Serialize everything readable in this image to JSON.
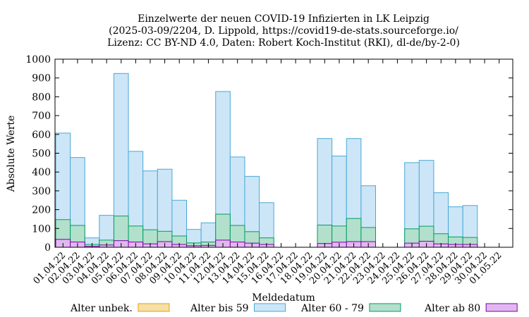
{
  "chart_data": {
    "type": "bar",
    "stacked": "overlay",
    "title": [
      "Einzelwerte der neuen COVID-19 Infizierten in LK Leipzig",
      "(2025-03-09/2204, D. Lippold, https://covid19-de-stats.sourceforge.io/",
      "Lizenz: CC BY-ND 4.0, Daten: Robert Koch-Institut (RKI), dl-de/by-2-0)"
    ],
    "xlabel": "Meldedatum",
    "ylabel": "Absolute Werte",
    "ylim": [
      0,
      1000
    ],
    "yticks": [
      0,
      100,
      200,
      300,
      400,
      500,
      600,
      700,
      800,
      900,
      1000
    ],
    "grid": false,
    "legend_position": "bottom",
    "categories": [
      "01.04.22",
      "02.04.22",
      "03.04.22",
      "04.04.22",
      "05.04.22",
      "06.04.22",
      "07.04.22",
      "08.04.22",
      "09.04.22",
      "10.04.22",
      "11.04.22",
      "12.04.22",
      "13.04.22",
      "14.04.22",
      "15.04.22",
      "16.04.22",
      "17.04.22",
      "18.04.22",
      "19.04.22",
      "20.04.22",
      "21.04.22",
      "22.04.22",
      "23.04.22",
      "24.04.22",
      "25.04.22",
      "26.04.22",
      "27.04.22",
      "28.04.22",
      "29.04.22",
      "30.04.22",
      "01.05.22"
    ],
    "series": [
      {
        "name": "Alter unbek.",
        "color": "#f5e0a8",
        "edge": "#e8a000",
        "values": [
          0,
          0,
          0,
          0,
          0,
          0,
          0,
          0,
          0,
          0,
          0,
          0,
          0,
          0,
          0,
          null,
          null,
          null,
          0,
          0,
          0,
          0,
          null,
          null,
          0,
          0,
          0,
          0,
          0,
          null,
          null
        ]
      },
      {
        "name": "Alter bis 59",
        "color": "#cce6f7",
        "edge": "#4aa8d8",
        "values": [
          607,
          477,
          50,
          170,
          924,
          510,
          406,
          415,
          250,
          95,
          130,
          828,
          480,
          377,
          237,
          null,
          null,
          null,
          578,
          485,
          578,
          327,
          null,
          null,
          450,
          462,
          290,
          215,
          222,
          null,
          null
        ]
      },
      {
        "name": "Alter 60 - 79",
        "color": "#b3e0cc",
        "edge": "#009e60",
        "values": [
          147,
          116,
          15,
          38,
          166,
          113,
          93,
          85,
          60,
          23,
          28,
          176,
          116,
          83,
          50,
          null,
          null,
          null,
          118,
          113,
          153,
          105,
          null,
          null,
          98,
          112,
          72,
          55,
          52,
          null,
          null
        ]
      },
      {
        "name": "Alter ab 80",
        "color": "#e0b8f0",
        "edge": "#8000a8",
        "values": [
          42,
          28,
          5,
          12,
          35,
          28,
          18,
          30,
          15,
          8,
          10,
          38,
          28,
          22,
          15,
          null,
          null,
          null,
          20,
          27,
          30,
          30,
          null,
          null,
          22,
          32,
          18,
          15,
          15,
          null,
          null
        ]
      }
    ]
  }
}
